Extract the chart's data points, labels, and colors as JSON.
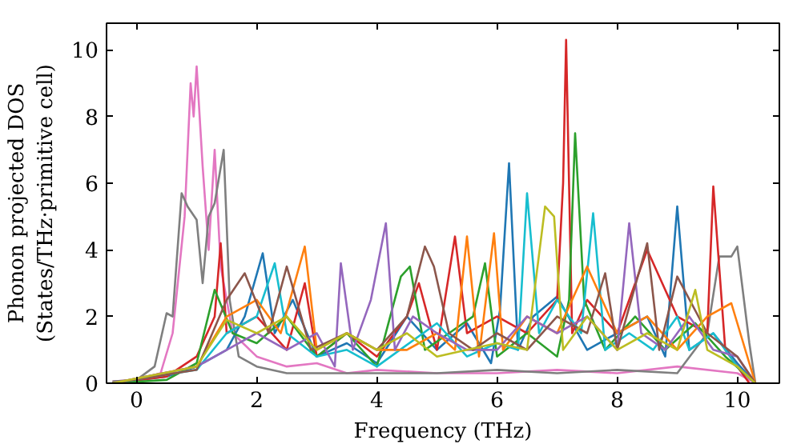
{
  "chart_data": {
    "type": "line",
    "xlabel": "Frequency (THz)",
    "ylabel": "Phonon projected DOS\n(States/THz·primitive cell)",
    "xlim": [
      -0.5,
      10.7
    ],
    "ylim": [
      0,
      10.8
    ],
    "xticks": [
      0,
      2,
      4,
      6,
      8,
      10
    ],
    "yticks": [
      0,
      2,
      4,
      6,
      8,
      10
    ],
    "grid": false,
    "series": [
      {
        "color": "#e377c2",
        "x": [
          -0.4,
          0,
          0.4,
          0.6,
          0.8,
          0.9,
          0.95,
          1.0,
          1.1,
          1.2,
          1.3,
          1.4,
          1.6,
          2.0,
          2.5,
          3.0,
          3.5,
          4.0,
          5,
          6,
          7,
          8,
          9,
          10,
          10.3
        ],
        "values": [
          0.05,
          0.1,
          0.3,
          1.5,
          5.0,
          9.0,
          8.0,
          9.5,
          6.5,
          4.0,
          7.0,
          3.5,
          1.5,
          0.8,
          0.5,
          0.6,
          0.3,
          0.4,
          0.3,
          0.3,
          0.4,
          0.3,
          0.5,
          0.3,
          0
        ]
      },
      {
        "color": "#7f7f7f",
        "x": [
          -0.4,
          0,
          0.3,
          0.5,
          0.6,
          0.75,
          0.85,
          1.0,
          1.1,
          1.2,
          1.3,
          1.45,
          1.55,
          1.7,
          2.0,
          2.5,
          3,
          4,
          5,
          6,
          7,
          8,
          9,
          9.5,
          9.7,
          9.9,
          10.0,
          10.2,
          10.3
        ],
        "values": [
          0.05,
          0.1,
          0.5,
          2.1,
          2.0,
          5.7,
          5.3,
          4.9,
          3.0,
          5.0,
          5.4,
          7.0,
          2.5,
          0.8,
          0.5,
          0.3,
          0.3,
          0.3,
          0.3,
          0.4,
          0.3,
          0.4,
          0.3,
          1.5,
          3.8,
          3.8,
          4.1,
          1.2,
          0
        ]
      },
      {
        "color": "#1f77b4",
        "x": [
          -0.4,
          0.5,
          1.0,
          1.5,
          1.8,
          2.1,
          2.3,
          2.6,
          3,
          3.5,
          4,
          4.5,
          5,
          5.5,
          5.9,
          6.05,
          6.2,
          6.35,
          6.6,
          7,
          7.5,
          8,
          8.5,
          8.8,
          9.0,
          9.2,
          9.6,
          10,
          10.3
        ],
        "values": [
          0,
          0.2,
          0.5,
          1.0,
          2.0,
          3.9,
          1.5,
          2.5,
          0.8,
          1.2,
          0.6,
          2.0,
          1.0,
          1.8,
          0.6,
          2.2,
          6.6,
          1.0,
          2.0,
          2.6,
          1.0,
          1.5,
          2.0,
          0.8,
          5.3,
          1.0,
          1.5,
          0.6,
          0
        ]
      },
      {
        "color": "#d62728",
        "x": [
          -0.4,
          0.5,
          1.0,
          1.3,
          1.4,
          1.5,
          2,
          2.5,
          2.8,
          3,
          3.5,
          4,
          4.5,
          4.7,
          5,
          5.3,
          5.5,
          6,
          6.5,
          7.0,
          7.1,
          7.15,
          7.25,
          7.5,
          8,
          8.5,
          9.0,
          9.5,
          9.6,
          9.8,
          10.2
        ],
        "values": [
          0,
          0.2,
          0.8,
          2.0,
          4.2,
          1.5,
          2.0,
          1.0,
          3.0,
          0.8,
          1.5,
          0.8,
          2.0,
          3.0,
          1.0,
          4.4,
          1.5,
          2.0,
          1.5,
          2.5,
          6.0,
          10.3,
          1.5,
          2.5,
          1.5,
          4.0,
          2.0,
          1.5,
          5.9,
          1.0,
          0
        ]
      },
      {
        "color": "#2ca02c",
        "x": [
          -0.4,
          0.5,
          1,
          1.3,
          1.6,
          2,
          2.5,
          3,
          3.5,
          4,
          4.4,
          4.55,
          4.8,
          5.2,
          5.6,
          5.8,
          6.0,
          6.5,
          7.0,
          7.2,
          7.3,
          7.45,
          7.8,
          8.3,
          8.8,
          9.3,
          9.8,
          10.3
        ],
        "values": [
          0,
          0.1,
          0.6,
          2.8,
          1.5,
          1.2,
          2.0,
          0.8,
          1.5,
          0.5,
          3.2,
          3.5,
          1.0,
          1.5,
          2.0,
          3.6,
          0.8,
          1.5,
          0.8,
          2.5,
          7.5,
          2.5,
          1.0,
          2.0,
          1.0,
          1.8,
          0.8,
          0
        ]
      },
      {
        "color": "#17becf",
        "x": [
          -0.4,
          1,
          1.5,
          2,
          2.3,
          2.5,
          3,
          3.5,
          4,
          5,
          5.5,
          6,
          6.35,
          6.5,
          6.7,
          7,
          7.4,
          7.6,
          7.8,
          8.2,
          8.6,
          9.0,
          9.2,
          9.6,
          10,
          10.3
        ],
        "values": [
          0,
          0.4,
          1.5,
          2.0,
          3.6,
          1.5,
          0.8,
          1.0,
          0.5,
          1.8,
          0.8,
          1.2,
          1.0,
          5.7,
          1.5,
          2.5,
          1.5,
          5.1,
          1.0,
          1.5,
          1.0,
          2.0,
          1.0,
          1.5,
          0.5,
          0
        ]
      },
      {
        "color": "#ff7f0e",
        "x": [
          -0.4,
          1,
          1.5,
          2,
          2.4,
          2.8,
          3,
          3.5,
          4,
          4.5,
          5,
          5.3,
          5.5,
          5.7,
          5.95,
          6.1,
          6.5,
          7,
          7.5,
          8,
          8.5,
          9,
          9.5,
          9.9,
          10.3
        ],
        "values": [
          0,
          0.5,
          2.0,
          2.5,
          1.5,
          4.1,
          1.0,
          1.5,
          1.0,
          1.0,
          1.5,
          1.0,
          4.4,
          0.8,
          4.5,
          1.0,
          2.0,
          1.5,
          3.5,
          1.5,
          2.0,
          1.0,
          2.0,
          2.4,
          0
        ]
      },
      {
        "color": "#9467bd",
        "x": [
          -0.4,
          1,
          1.5,
          2,
          2.5,
          3,
          3.3,
          3.4,
          3.6,
          3.9,
          4.15,
          4.3,
          4.6,
          5,
          5.5,
          6,
          6.5,
          7,
          7.5,
          8,
          8.2,
          8.4,
          8.8,
          9.2,
          9.6,
          10,
          10.3
        ],
        "values": [
          0,
          0.5,
          1.0,
          1.5,
          1.0,
          1.5,
          0.5,
          3.6,
          1.0,
          2.5,
          4.8,
          1.0,
          2.0,
          1.5,
          1.0,
          1.0,
          2.0,
          1.5,
          2.0,
          1.0,
          4.8,
          1.5,
          1.0,
          2.0,
          1.0,
          0.8,
          0
        ]
      },
      {
        "color": "#8c564b",
        "x": [
          -0.4,
          1,
          1.5,
          1.8,
          2.2,
          2.5,
          2.9,
          3.5,
          4,
          4.5,
          4.8,
          4.95,
          5.2,
          5.6,
          6,
          6.5,
          7,
          7.5,
          7.8,
          8,
          8.5,
          8.7,
          9,
          9.5,
          10,
          10.3
        ],
        "values": [
          0,
          0.4,
          2.5,
          3.3,
          1.5,
          3.5,
          1.0,
          1.5,
          1.0,
          2.0,
          4.1,
          3.5,
          1.5,
          1.0,
          1.5,
          1.0,
          2.0,
          1.5,
          3.3,
          1.0,
          4.2,
          1.0,
          3.2,
          1.5,
          0.8,
          0
        ]
      },
      {
        "color": "#bcbd22",
        "x": [
          -0.4,
          1,
          1.5,
          2,
          2.5,
          3,
          3.5,
          4,
          4.5,
          5,
          5.5,
          6,
          6.5,
          6.8,
          6.95,
          7.1,
          7.5,
          8,
          8.5,
          9,
          9.3,
          9.5,
          10,
          10.3
        ],
        "values": [
          0,
          0.5,
          1.9,
          1.5,
          2.0,
          1.0,
          1.5,
          1.0,
          1.5,
          0.8,
          1.0,
          1.2,
          1.0,
          5.3,
          5.0,
          1.0,
          2.0,
          1.0,
          1.5,
          1.0,
          2.8,
          1.0,
          0.5,
          0
        ]
      }
    ]
  }
}
